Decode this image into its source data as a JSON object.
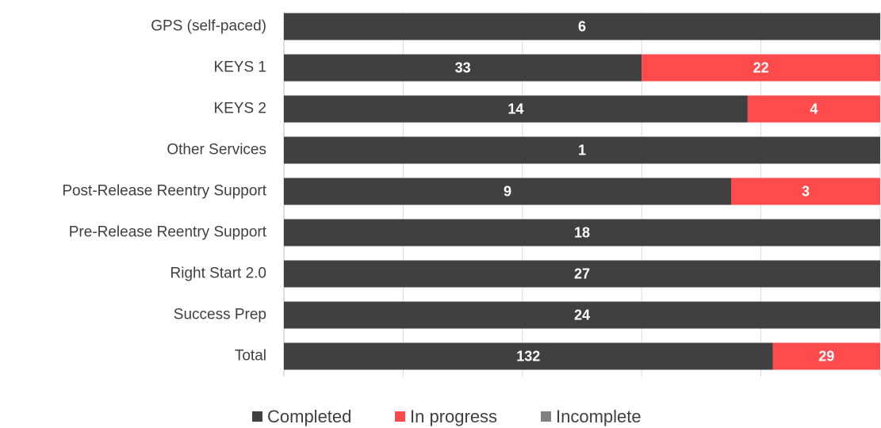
{
  "chart_data": {
    "type": "stacked_bar_100",
    "orientation": "horizontal",
    "categories": [
      "GPS (self-paced)",
      "KEYS 1",
      "KEYS 2",
      "Other Services",
      "Post-Release Reentry Support",
      "Pre-Release Reentry Support",
      "Right Start 2.0",
      "Success Prep",
      "Total"
    ],
    "series": [
      {
        "name": "Completed",
        "color": "#404040",
        "values": [
          6,
          33,
          14,
          1,
          9,
          18,
          27,
          24,
          132
        ]
      },
      {
        "name": "In progress",
        "color": "#ff4b4b",
        "values": [
          0,
          22,
          4,
          0,
          3,
          0,
          0,
          0,
          29
        ]
      },
      {
        "name": "Incomplete",
        "color": "#808080",
        "values": [
          0,
          0,
          0,
          0,
          0,
          0,
          0,
          0,
          0
        ]
      }
    ],
    "xlim": [
      0,
      100
    ],
    "xticks": [
      0,
      20,
      40,
      60,
      80,
      100
    ],
    "grid": true,
    "legend": "bottom"
  }
}
